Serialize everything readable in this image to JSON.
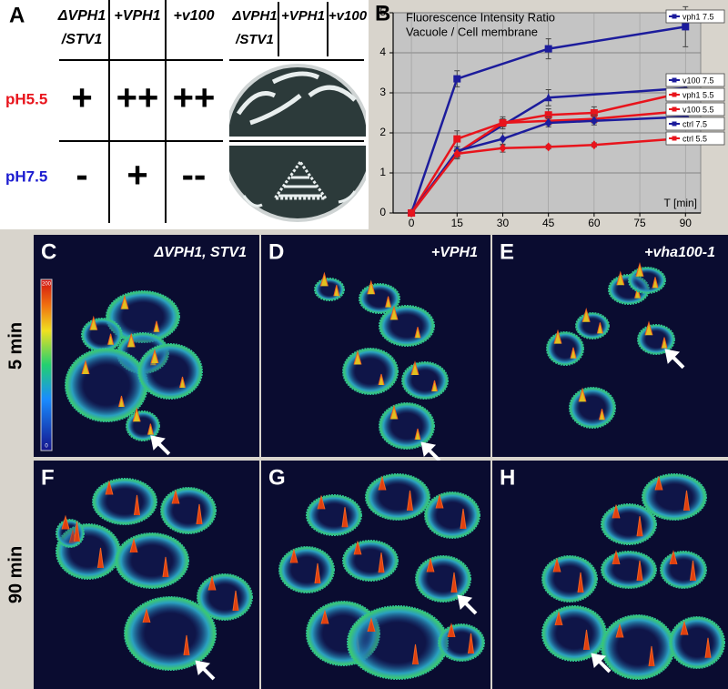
{
  "panel_a": {
    "label": "A",
    "columns": [
      [
        "ΔVPH1",
        "/STV1"
      ],
      [
        "+VPH1"
      ],
      [
        "+v100"
      ]
    ],
    "rows": [
      {
        "label": "pH5.5",
        "cells": [
          "+",
          "++",
          "++"
        ]
      },
      {
        "label": "pH7.5",
        "cells": [
          "-",
          "+",
          "--"
        ]
      }
    ],
    "plate_columns": [
      [
        "ΔVPH1",
        "/STV1"
      ],
      [
        "+VPH1"
      ],
      [
        "+v100"
      ]
    ]
  },
  "chart_data": {
    "type": "line",
    "panel_label": "B",
    "title": "Fluorescence Intensity Ratio",
    "subtitle": "Vacuole / Cell membrane",
    "x_label": "T [min]",
    "xlim": [
      -6,
      95
    ],
    "ylim": [
      0,
      5
    ],
    "xticks": [
      0,
      15,
      30,
      45,
      60,
      75,
      90
    ],
    "yticks": [
      0,
      1,
      2,
      3,
      4,
      5
    ],
    "grid": true,
    "legend": "right",
    "series": [
      {
        "name": "vph1  7.5",
        "color": "#1c1c9c",
        "marker": "square",
        "x": [
          0,
          15,
          45,
          90
        ],
        "values": [
          0,
          3.35,
          4.1,
          4.65
        ],
        "errors": [
          null,
          0.2,
          0.25,
          0.5
        ]
      },
      {
        "name": "v100  7.5",
        "color": "#1c1c9c",
        "marker": "triangle",
        "x": [
          0,
          15,
          45,
          90
        ],
        "values": [
          0,
          1.5,
          2.88,
          3.12
        ],
        "errors": [
          null,
          0.15,
          0.2,
          0.15
        ]
      },
      {
        "name": "vph1  5.5",
        "color": "#e8141c",
        "marker": "square",
        "x": [
          0,
          15,
          30,
          45,
          60,
          90
        ],
        "values": [
          0,
          1.85,
          2.25,
          2.45,
          2.5,
          3.02
        ],
        "errors": [
          null,
          0.2,
          0.15,
          0.15,
          0.15,
          0.1
        ]
      },
      {
        "name": "v100  5.5",
        "color": "#e8141c",
        "marker": "triangle",
        "x": [
          0,
          15,
          30,
          45,
          60,
          90
        ],
        "values": [
          0,
          1.5,
          2.25,
          2.3,
          2.35,
          2.55
        ],
        "errors": [
          null,
          0.1,
          0.1,
          0.1,
          0.1,
          0.1
        ]
      },
      {
        "name": "ctrl  7.5",
        "color": "#1c1c9c",
        "marker": "diamond",
        "x": [
          0,
          15,
          30,
          45,
          60,
          90
        ],
        "values": [
          0,
          1.55,
          1.85,
          2.25,
          2.3,
          2.4
        ],
        "errors": [
          null,
          0.1,
          0.15,
          0.1,
          0.1,
          0.1
        ]
      },
      {
        "name": "ctrl  5.5",
        "color": "#e8141c",
        "marker": "diamond",
        "x": [
          0,
          15,
          30,
          45,
          60,
          90
        ],
        "values": [
          0,
          1.48,
          1.62,
          1.65,
          1.7,
          1.87
        ],
        "errors": [
          null,
          0.1,
          0.1,
          0.05,
          0.05,
          0.05
        ]
      }
    ]
  },
  "panel_images": {
    "row_labels": [
      "5 min",
      "90 min"
    ],
    "panels": [
      {
        "label": "C",
        "caption": "ΔVPH1, STV1"
      },
      {
        "label": "D",
        "caption": "+VPH1"
      },
      {
        "label": "E",
        "caption": "+vha100-1"
      },
      {
        "label": "F"
      },
      {
        "label": "G"
      },
      {
        "label": "H"
      }
    ],
    "colorbar": {
      "max": "200",
      "min": "0"
    }
  }
}
